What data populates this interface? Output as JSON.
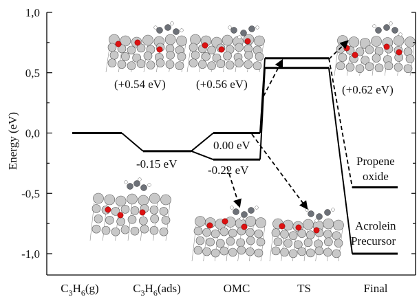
{
  "chart_data": {
    "type": "line",
    "ylabel": "Energy (eV)",
    "ylim": [
      -1.15,
      1.0
    ],
    "yticks": [
      "1,0",
      "0,5",
      "0,0",
      "-0,5",
      "-1,0"
    ],
    "ytick_values": [
      1.0,
      0.5,
      0.0,
      -0.5,
      -1.0
    ],
    "categories": [
      "C3H6(g)",
      "C3H6(ads)",
      "OMC",
      "TS",
      "Final"
    ],
    "category_labels": [
      {
        "main": "C",
        "sub1": "3",
        "mid": "H",
        "sub2": "6",
        "tail": "(g)"
      },
      {
        "main": "C",
        "sub1": "3",
        "mid": "H",
        "sub2": "6",
        "tail": "(ads)"
      },
      {
        "main": "OMC"
      },
      {
        "main": "TS"
      },
      {
        "main": "Final"
      }
    ],
    "series": [
      {
        "values": [
          0.0,
          -0.15,
          0.0,
          0.62,
          -0.45
        ]
      },
      {
        "values": [
          0.0,
          -0.15,
          -0.22,
          0.54,
          -1.0
        ]
      }
    ],
    "annotations": {
      "ads": "-0.15 eV",
      "omc_upper": "0.00 eV",
      "omc_lower": "-0.22 eV",
      "inset1": "(+0.54 eV)",
      "inset2": "(+0.56 eV)",
      "inset3": "(+0.62 eV)",
      "propene_line1": "Propene",
      "propene_line2": "oxide",
      "acrolein_line1": "Acrolein",
      "acrolein_line2": "Precursor"
    }
  }
}
